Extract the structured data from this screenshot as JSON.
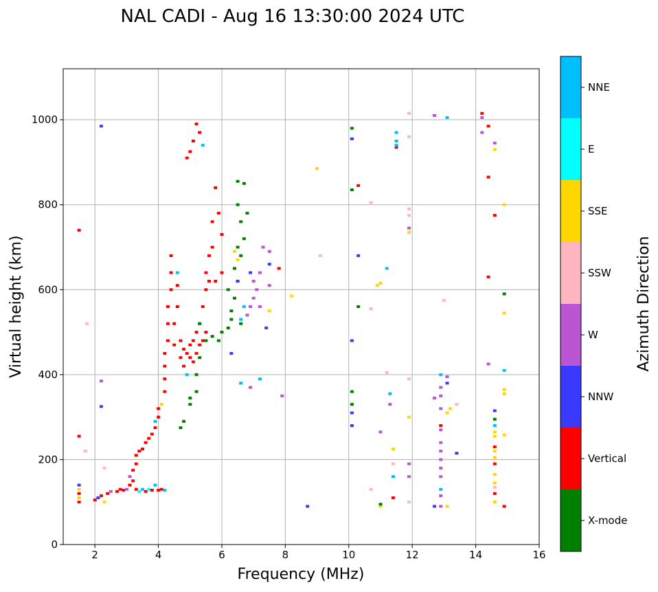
{
  "chart_data": {
    "type": "scatter",
    "title": "NAL CADI - Aug 16 13:30:00 2024 UTC",
    "xlabel": "Frequency (MHz)",
    "ylabel": "Virtual height (km)",
    "xlim": [
      1,
      16
    ],
    "ylim": [
      0,
      1120
    ],
    "xticks": [
      2,
      4,
      6,
      8,
      10,
      12,
      14,
      16
    ],
    "yticks": [
      0,
      200,
      400,
      600,
      800,
      1000
    ],
    "grid": true,
    "colorbar": {
      "label": "Azimuth Direction",
      "categories": [
        "X-mode",
        "Vertical",
        "NNW",
        "W",
        "SSW",
        "SSE",
        "E",
        "NNE"
      ],
      "colors": [
        "#008000",
        "#ff0000",
        "#3a3aff",
        "#ba55d3",
        "#ffb6c1",
        "#ffd700",
        "#00ffff",
        "#00bfff"
      ]
    },
    "points": [
      [
        1.5,
        100,
        1
      ],
      [
        1.5,
        110,
        5
      ],
      [
        1.5,
        120,
        1
      ],
      [
        1.5,
        130,
        5
      ],
      [
        1.5,
        140,
        2
      ],
      [
        1.5,
        255,
        1
      ],
      [
        1.5,
        740,
        1
      ],
      [
        1.75,
        520,
        4
      ],
      [
        1.7,
        220,
        4
      ],
      [
        2.0,
        105,
        1
      ],
      [
        2.1,
        110,
        2
      ],
      [
        2.2,
        115,
        1
      ],
      [
        2.3,
        100,
        5
      ],
      [
        2.4,
        120,
        1
      ],
      [
        2.5,
        125,
        3
      ],
      [
        2.3,
        180,
        4
      ],
      [
        2.2,
        985,
        2
      ],
      [
        2.2,
        385,
        3
      ],
      [
        2.2,
        325,
        2
      ],
      [
        2.7,
        125,
        1
      ],
      [
        2.8,
        130,
        1
      ],
      [
        2.9,
        128,
        1
      ],
      [
        3.0,
        130,
        3
      ],
      [
        3.1,
        140,
        1
      ],
      [
        3.1,
        160,
        3
      ],
      [
        3.2,
        150,
        1
      ],
      [
        3.2,
        175,
        1
      ],
      [
        3.3,
        130,
        1
      ],
      [
        3.3,
        190,
        1
      ],
      [
        3.4,
        125,
        6
      ],
      [
        3.5,
        130,
        7
      ],
      [
        3.6,
        125,
        1
      ],
      [
        3.7,
        130,
        6
      ],
      [
        3.8,
        128,
        1
      ],
      [
        3.9,
        140,
        7
      ],
      [
        4.0,
        128,
        1
      ],
      [
        4.1,
        130,
        1
      ],
      [
        4.2,
        128,
        7
      ],
      [
        3.3,
        210,
        1
      ],
      [
        3.4,
        220,
        1
      ],
      [
        3.5,
        225,
        1
      ],
      [
        3.6,
        240,
        1
      ],
      [
        3.7,
        250,
        1
      ],
      [
        3.8,
        260,
        1
      ],
      [
        3.9,
        275,
        1
      ],
      [
        3.9,
        290,
        7
      ],
      [
        4.0,
        300,
        1
      ],
      [
        4.0,
        320,
        1
      ],
      [
        4.1,
        330,
        5
      ],
      [
        4.2,
        360,
        1
      ],
      [
        4.2,
        390,
        1
      ],
      [
        4.2,
        420,
        1
      ],
      [
        4.2,
        450,
        1
      ],
      [
        4.3,
        480,
        1
      ],
      [
        4.3,
        520,
        1
      ],
      [
        4.3,
        560,
        1
      ],
      [
        4.4,
        600,
        1
      ],
      [
        4.4,
        640,
        1
      ],
      [
        4.4,
        680,
        1
      ],
      [
        4.5,
        470,
        1
      ],
      [
        4.5,
        520,
        1
      ],
      [
        4.6,
        560,
        1
      ],
      [
        4.6,
        610,
        1
      ],
      [
        4.6,
        640,
        7
      ],
      [
        4.7,
        440,
        1
      ],
      [
        4.7,
        480,
        1
      ],
      [
        4.8,
        460,
        1
      ],
      [
        4.8,
        420,
        1
      ],
      [
        4.9,
        450,
        1
      ],
      [
        4.9,
        400,
        7
      ],
      [
        5.0,
        440,
        1
      ],
      [
        5.0,
        470,
        1
      ],
      [
        5.1,
        430,
        1
      ],
      [
        5.1,
        480,
        1
      ],
      [
        5.2,
        450,
        1
      ],
      [
        5.2,
        500,
        1
      ],
      [
        5.3,
        470,
        1
      ],
      [
        5.3,
        520,
        7
      ],
      [
        5.4,
        480,
        1
      ],
      [
        5.4,
        560,
        1
      ],
      [
        5.5,
        500,
        1
      ],
      [
        5.5,
        600,
        1
      ],
      [
        5.5,
        640,
        1
      ],
      [
        5.6,
        680,
        1
      ],
      [
        5.6,
        620,
        1
      ],
      [
        5.7,
        700,
        1
      ],
      [
        5.7,
        760,
        1
      ],
      [
        5.8,
        620,
        1
      ],
      [
        5.8,
        840,
        1
      ],
      [
        5.9,
        780,
        1
      ],
      [
        6.0,
        730,
        1
      ],
      [
        6.0,
        640,
        1
      ],
      [
        4.9,
        910,
        1
      ],
      [
        5.0,
        925,
        1
      ],
      [
        5.1,
        950,
        1
      ],
      [
        5.2,
        990,
        1
      ],
      [
        5.3,
        970,
        1
      ],
      [
        5.4,
        940,
        7
      ],
      [
        4.7,
        275,
        0
      ],
      [
        4.8,
        290,
        0
      ],
      [
        5.0,
        330,
        0
      ],
      [
        5.0,
        345,
        0
      ],
      [
        5.2,
        360,
        0
      ],
      [
        5.2,
        400,
        0
      ],
      [
        5.3,
        440,
        0
      ],
      [
        5.3,
        520,
        0
      ],
      [
        5.5,
        480,
        0
      ],
      [
        5.7,
        490,
        0
      ],
      [
        5.9,
        480,
        0
      ],
      [
        6.0,
        500,
        0
      ],
      [
        6.2,
        510,
        0
      ],
      [
        6.3,
        530,
        0
      ],
      [
        6.4,
        580,
        0
      ],
      [
        6.5,
        620,
        0
      ],
      [
        6.6,
        680,
        0
      ],
      [
        6.6,
        760,
        0
      ],
      [
        6.7,
        850,
        0
      ],
      [
        6.2,
        600,
        0
      ],
      [
        6.4,
        650,
        0
      ],
      [
        6.5,
        700,
        0
      ],
      [
        6.5,
        800,
        0
      ],
      [
        6.7,
        720,
        0
      ],
      [
        6.3,
        550,
        0
      ],
      [
        6.6,
        520,
        0
      ],
      [
        6.8,
        780,
        0
      ],
      [
        6.5,
        855,
        0
      ],
      [
        6.5,
        670,
        5
      ],
      [
        6.4,
        690,
        5
      ],
      [
        6.6,
        530,
        7
      ],
      [
        6.7,
        560,
        7
      ],
      [
        6.3,
        450,
        2
      ],
      [
        6.5,
        620,
        2
      ],
      [
        6.9,
        640,
        2
      ],
      [
        6.8,
        540,
        3
      ],
      [
        6.9,
        560,
        3
      ],
      [
        7.0,
        580,
        3
      ],
      [
        7.0,
        620,
        3
      ],
      [
        7.1,
        600,
        3
      ],
      [
        7.2,
        640,
        3
      ],
      [
        7.2,
        560,
        3
      ],
      [
        7.3,
        700,
        3
      ],
      [
        7.5,
        610,
        3
      ],
      [
        7.5,
        660,
        2
      ],
      [
        7.5,
        550,
        5
      ],
      [
        7.5,
        690,
        3
      ],
      [
        7.4,
        510,
        2
      ],
      [
        6.6,
        380,
        7
      ],
      [
        7.2,
        390,
        7
      ],
      [
        6.9,
        370,
        3
      ],
      [
        7.9,
        350,
        3
      ],
      [
        7.8,
        650,
        1
      ],
      [
        8.2,
        585,
        5
      ],
      [
        9.0,
        885,
        5
      ],
      [
        9.1,
        680,
        4
      ],
      [
        8.7,
        90,
        2
      ],
      [
        10.1,
        980,
        0
      ],
      [
        10.1,
        955,
        2
      ],
      [
        10.1,
        835,
        0
      ],
      [
        10.3,
        845,
        1
      ],
      [
        10.3,
        680,
        2
      ],
      [
        10.3,
        560,
        0
      ],
      [
        10.1,
        480,
        2
      ],
      [
        10.1,
        360,
        0
      ],
      [
        10.1,
        330,
        0
      ],
      [
        10.1,
        310,
        2
      ],
      [
        10.1,
        280,
        2
      ],
      [
        10.7,
        805,
        4
      ],
      [
        10.9,
        610,
        5
      ],
      [
        11.0,
        615,
        5
      ],
      [
        10.7,
        555,
        4
      ],
      [
        11.2,
        650,
        7
      ],
      [
        11.2,
        405,
        4
      ],
      [
        11.3,
        355,
        7
      ],
      [
        11.3,
        330,
        3
      ],
      [
        11.0,
        265,
        3
      ],
      [
        10.7,
        130,
        4
      ],
      [
        11.0,
        90,
        5
      ],
      [
        11.0,
        95,
        0
      ],
      [
        11.4,
        225,
        5
      ],
      [
        11.4,
        190,
        4
      ],
      [
        11.4,
        160,
        7
      ],
      [
        11.4,
        110,
        1
      ],
      [
        11.5,
        970,
        7
      ],
      [
        11.5,
        950,
        7
      ],
      [
        11.5,
        935,
        1
      ],
      [
        11.5,
        940,
        7
      ],
      [
        11.9,
        1015,
        4
      ],
      [
        11.9,
        960,
        4
      ],
      [
        11.9,
        790,
        4
      ],
      [
        11.9,
        775,
        4
      ],
      [
        11.9,
        745,
        3
      ],
      [
        11.9,
        735,
        5
      ],
      [
        11.9,
        390,
        4
      ],
      [
        11.9,
        300,
        5
      ],
      [
        11.9,
        190,
        3
      ],
      [
        11.9,
        160,
        3
      ],
      [
        11.9,
        100,
        4
      ],
      [
        12.7,
        1010,
        3
      ],
      [
        13.1,
        1005,
        7
      ],
      [
        13.0,
        575,
        4
      ],
      [
        12.9,
        400,
        7
      ],
      [
        12.9,
        370,
        3
      ],
      [
        12.9,
        350,
        3
      ],
      [
        12.7,
        345,
        3
      ],
      [
        12.9,
        320,
        3
      ],
      [
        12.9,
        280,
        1
      ],
      [
        12.9,
        270,
        3
      ],
      [
        12.9,
        240,
        3
      ],
      [
        12.9,
        220,
        3
      ],
      [
        12.9,
        200,
        3
      ],
      [
        12.9,
        180,
        3
      ],
      [
        12.9,
        160,
        3
      ],
      [
        12.9,
        130,
        7
      ],
      [
        12.9,
        115,
        3
      ],
      [
        12.7,
        90,
        2
      ],
      [
        12.9,
        90,
        3
      ],
      [
        13.1,
        90,
        5
      ],
      [
        13.1,
        395,
        3
      ],
      [
        13.1,
        380,
        2
      ],
      [
        13.2,
        320,
        5
      ],
      [
        13.1,
        310,
        5
      ],
      [
        13.4,
        330,
        4
      ],
      [
        13.4,
        215,
        2
      ],
      [
        14.2,
        1015,
        1
      ],
      [
        14.2,
        1005,
        3
      ],
      [
        14.2,
        970,
        3
      ],
      [
        14.4,
        985,
        1
      ],
      [
        14.4,
        865,
        1
      ],
      [
        14.4,
        630,
        1
      ],
      [
        14.4,
        425,
        3
      ],
      [
        14.6,
        945,
        3
      ],
      [
        14.6,
        930,
        5
      ],
      [
        14.6,
        775,
        1
      ],
      [
        14.6,
        315,
        2
      ],
      [
        14.6,
        295,
        0
      ],
      [
        14.6,
        280,
        7
      ],
      [
        14.6,
        265,
        5
      ],
      [
        14.6,
        255,
        5
      ],
      [
        14.6,
        230,
        1
      ],
      [
        14.6,
        220,
        5
      ],
      [
        14.6,
        205,
        5
      ],
      [
        14.6,
        190,
        1
      ],
      [
        14.6,
        165,
        5
      ],
      [
        14.6,
        145,
        5
      ],
      [
        14.6,
        135,
        4
      ],
      [
        14.6,
        120,
        1
      ],
      [
        14.6,
        100,
        5
      ],
      [
        14.9,
        800,
        5
      ],
      [
        14.9,
        590,
        0
      ],
      [
        14.9,
        545,
        5
      ],
      [
        14.9,
        410,
        7
      ],
      [
        14.9,
        365,
        5
      ],
      [
        14.9,
        355,
        5
      ],
      [
        14.9,
        258,
        5
      ],
      [
        14.9,
        90,
        1
      ]
    ]
  }
}
